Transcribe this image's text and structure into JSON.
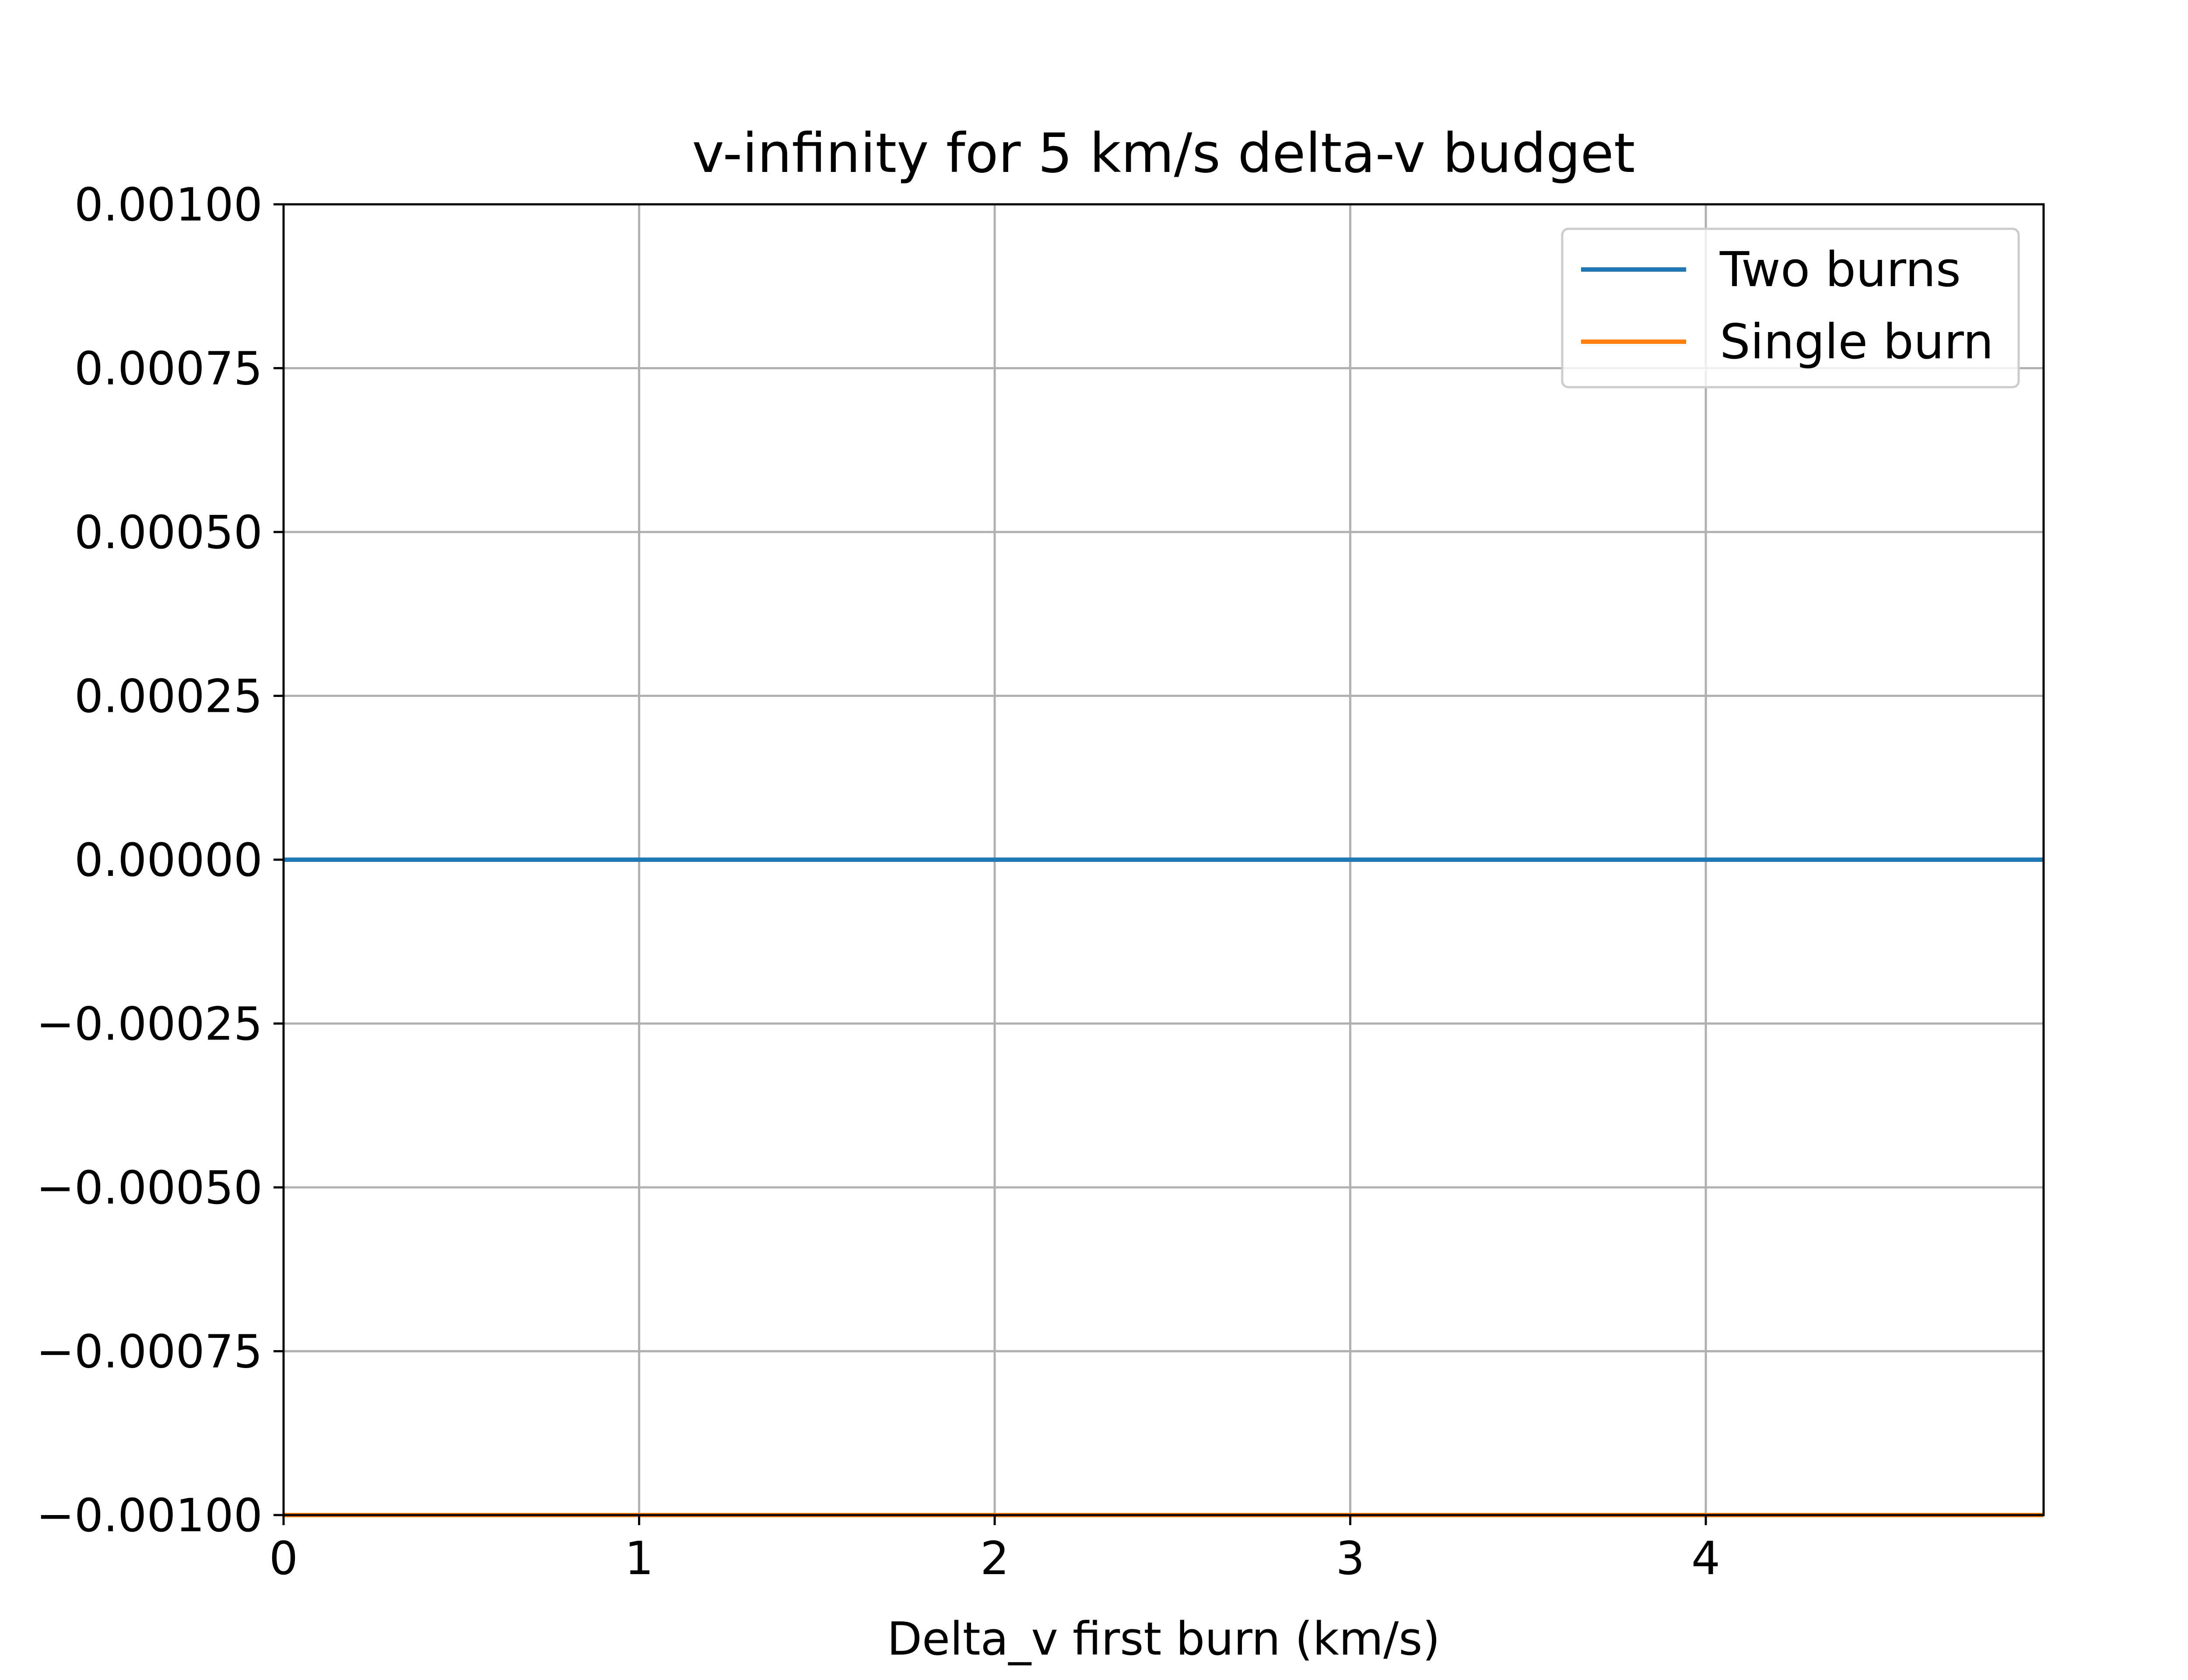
{
  "chart_data": {
    "type": "line",
    "title": "v-infinity for 5 km/s delta-v budget",
    "xlabel": "Delta_v first burn (km/s)",
    "ylabel": "",
    "xlim": [
      0,
      4.95
    ],
    "ylim": [
      -0.001,
      0.001
    ],
    "xticks": [
      0,
      1,
      2,
      3,
      4
    ],
    "xtick_labels": [
      "0",
      "1",
      "2",
      "3",
      "4"
    ],
    "yticks": [
      0.001,
      0.00075,
      0.0005,
      0.00025,
      0,
      -0.00025,
      -0.0005,
      -0.00075,
      -0.001
    ],
    "ytick_labels": [
      "0.00100",
      "0.00075",
      "0.00050",
      "0.00025",
      "0.00000",
      "−0.00025",
      "−0.00050",
      "−0.00075",
      "−0.00100"
    ],
    "grid": true,
    "legend_position": "top-right",
    "series": [
      {
        "name": "Two burns",
        "color": "#1f77b4",
        "x": [
          0,
          4.95
        ],
        "y": [
          0,
          0
        ]
      },
      {
        "name": "Single burn",
        "color": "#ff7f0e",
        "x": [
          0,
          4.95
        ],
        "y": [
          -0.001,
          -0.001
        ]
      }
    ]
  }
}
